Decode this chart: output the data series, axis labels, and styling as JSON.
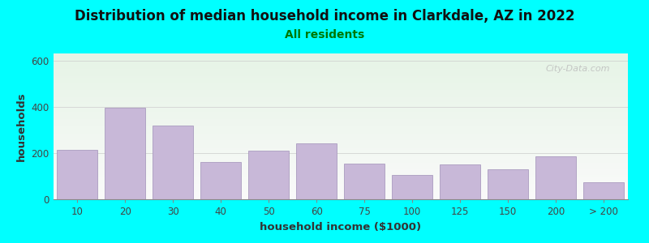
{
  "title": "Distribution of median household income in Clarkdale, AZ in 2022",
  "subtitle": "All residents",
  "xlabel": "household income ($1000)",
  "ylabel": "households",
  "background_outer": "#00FFFF",
  "bar_color": "#C8B8D8",
  "bar_edge_color": "#A090B8",
  "plot_bg_top": "#E6F4E6",
  "plot_bg_bottom": "#FAFAFA",
  "categories": [
    "10",
    "20",
    "30",
    "40",
    "50",
    "60",
    "75",
    "100",
    "125",
    "150",
    "200",
    "> 200"
  ],
  "values": [
    215,
    395,
    320,
    160,
    210,
    240,
    155,
    105,
    150,
    130,
    185,
    75
  ],
  "ylim": [
    0,
    630
  ],
  "yticks": [
    0,
    200,
    400,
    600
  ],
  "title_fontsize": 12,
  "subtitle_fontsize": 10,
  "axis_label_fontsize": 9.5,
  "tick_fontsize": 8.5,
  "watermark_text": "City-Data.com",
  "watermark_color": "#BBBBBB",
  "subtitle_color": "#007700",
  "title_color": "#111111"
}
